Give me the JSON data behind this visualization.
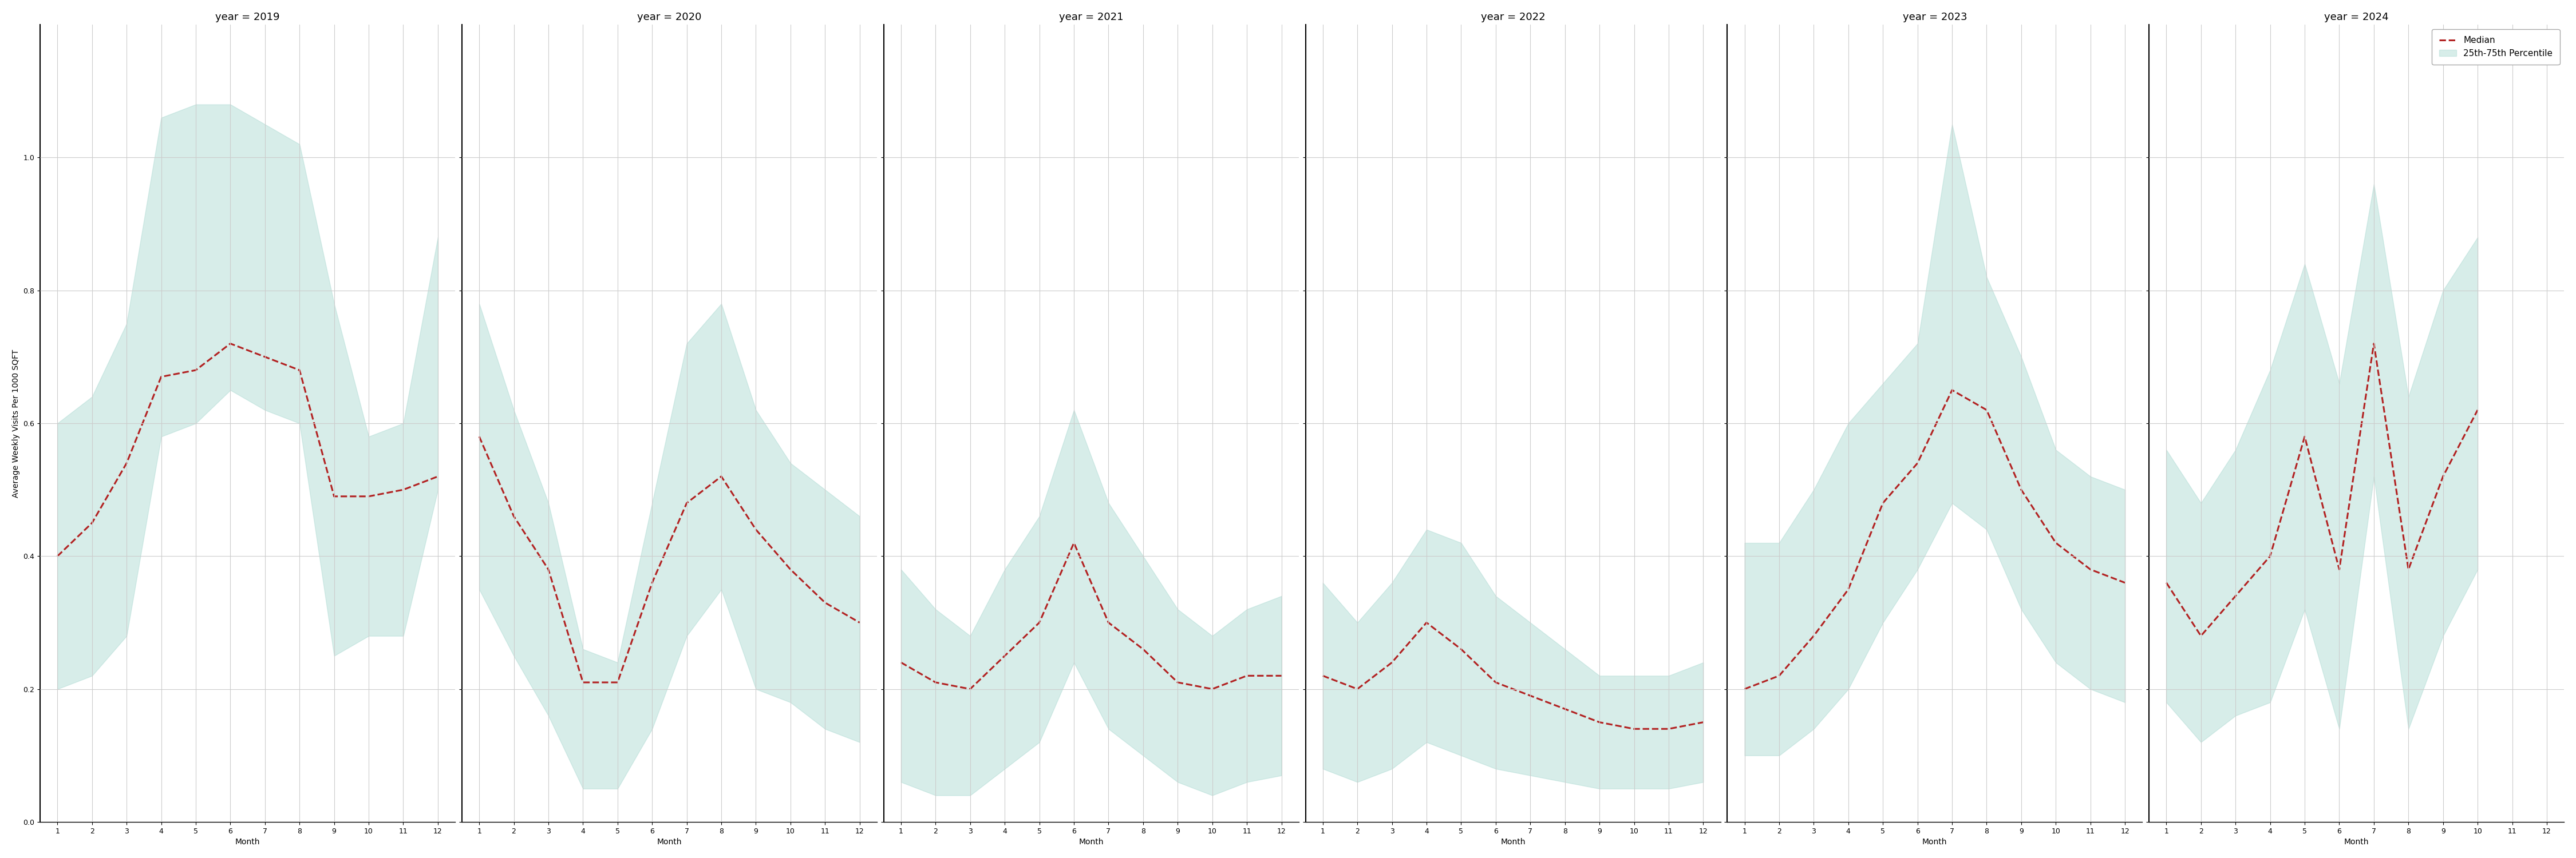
{
  "years": [
    2019,
    2020,
    2021,
    2022,
    2023,
    2024
  ],
  "months": [
    1,
    2,
    3,
    4,
    5,
    6,
    7,
    8,
    9,
    10,
    11,
    12
  ],
  "median": {
    "2019": [
      0.4,
      0.45,
      0.54,
      0.67,
      0.68,
      0.72,
      0.7,
      0.68,
      0.49,
      0.49,
      0.5,
      0.52
    ],
    "2020": [
      0.58,
      0.46,
      0.38,
      0.21,
      0.21,
      0.36,
      0.48,
      0.52,
      0.44,
      0.38,
      0.33,
      0.3
    ],
    "2021": [
      0.24,
      0.21,
      0.2,
      0.25,
      0.3,
      0.42,
      0.3,
      0.26,
      0.21,
      0.2,
      0.22,
      0.22
    ],
    "2022": [
      0.22,
      0.2,
      0.24,
      0.3,
      0.26,
      0.21,
      0.19,
      0.17,
      0.15,
      0.14,
      0.14,
      0.15
    ],
    "2023": [
      0.2,
      0.22,
      0.28,
      0.35,
      0.48,
      0.54,
      0.65,
      0.62,
      0.5,
      0.42,
      0.38,
      0.36
    ],
    "2024": [
      0.36,
      0.28,
      0.34,
      0.4,
      0.58,
      0.38,
      0.72,
      0.38,
      0.52,
      0.62,
      null,
      null
    ]
  },
  "p25": {
    "2019": [
      0.2,
      0.22,
      0.28,
      0.58,
      0.6,
      0.65,
      0.62,
      0.6,
      0.25,
      0.28,
      0.28,
      0.5
    ],
    "2020": [
      0.35,
      0.25,
      0.16,
      0.05,
      0.05,
      0.14,
      0.28,
      0.35,
      0.2,
      0.18,
      0.14,
      0.12
    ],
    "2021": [
      0.06,
      0.04,
      0.04,
      0.08,
      0.12,
      0.24,
      0.14,
      0.1,
      0.06,
      0.04,
      0.06,
      0.07
    ],
    "2022": [
      0.08,
      0.06,
      0.08,
      0.12,
      0.1,
      0.08,
      0.07,
      0.06,
      0.05,
      0.05,
      0.05,
      0.06
    ],
    "2023": [
      0.1,
      0.1,
      0.14,
      0.2,
      0.3,
      0.38,
      0.48,
      0.44,
      0.32,
      0.24,
      0.2,
      0.18
    ],
    "2024": [
      0.18,
      0.12,
      0.16,
      0.18,
      0.32,
      0.14,
      0.52,
      0.14,
      0.28,
      0.38,
      null,
      null
    ]
  },
  "p75": {
    "2019": [
      0.6,
      0.64,
      0.75,
      1.06,
      1.08,
      1.08,
      1.05,
      1.02,
      0.78,
      0.58,
      0.6,
      0.88
    ],
    "2020": [
      0.78,
      0.62,
      0.48,
      0.26,
      0.24,
      0.48,
      0.72,
      0.78,
      0.62,
      0.54,
      0.5,
      0.46
    ],
    "2021": [
      0.38,
      0.32,
      0.28,
      0.38,
      0.46,
      0.62,
      0.48,
      0.4,
      0.32,
      0.28,
      0.32,
      0.34
    ],
    "2022": [
      0.36,
      0.3,
      0.36,
      0.44,
      0.42,
      0.34,
      0.3,
      0.26,
      0.22,
      0.22,
      0.22,
      0.24
    ],
    "2023": [
      0.42,
      0.42,
      0.5,
      0.6,
      0.66,
      0.72,
      1.05,
      0.82,
      0.7,
      0.56,
      0.52,
      0.5
    ],
    "2024": [
      0.56,
      0.48,
      0.56,
      0.68,
      0.84,
      0.66,
      0.96,
      0.64,
      0.8,
      0.88,
      null,
      null
    ]
  },
  "ylabel": "Average Weekly Visits Per 1000 SQFT",
  "xlabel": "Month",
  "ylim": [
    0.0,
    1.2
  ],
  "yticks": [
    0.0,
    0.2,
    0.4,
    0.6,
    0.8,
    1.0
  ],
  "fill_color": "#a8d8d0",
  "fill_alpha": 0.45,
  "line_color": "#b22222",
  "line_style": "--",
  "line_width": 2.2,
  "grid_color": "#cccccc",
  "bg_color": "#ffffff",
  "legend_median": "Median",
  "legend_fill": "25th-75th Percentile",
  "title_prefix": "year = ",
  "title_fontsize": 13,
  "label_fontsize": 10,
  "tick_fontsize": 9,
  "legend_fontsize": 11
}
